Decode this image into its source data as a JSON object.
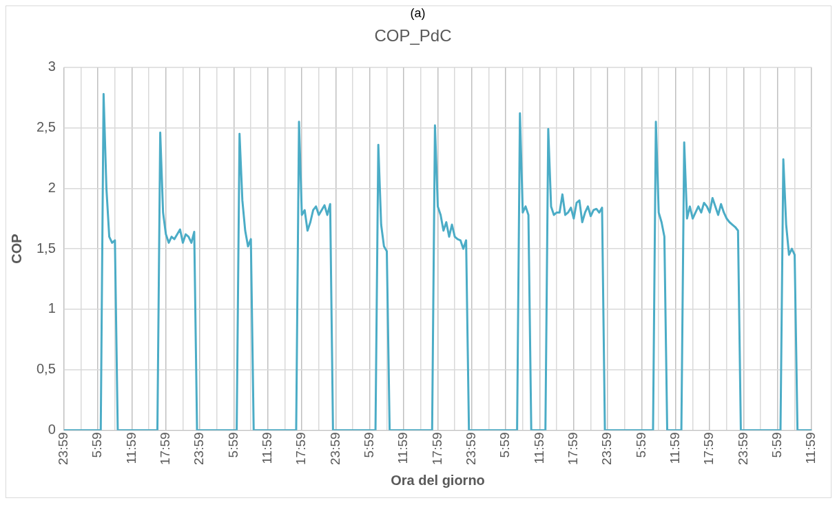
{
  "chart_data": {
    "type": "line",
    "title": "COP_PdC",
    "xlabel": "Ora del giorno",
    "ylabel": "COP",
    "annotations": [
      "(a)"
    ],
    "categories": [
      "23:59",
      null,
      null,
      null,
      null,
      null,
      null,
      null,
      null,
      null,
      null,
      null,
      "5:59",
      null,
      null,
      null,
      null,
      null,
      null,
      null,
      null,
      null,
      null,
      null,
      "11:59",
      null,
      null,
      null,
      null,
      null,
      null,
      null,
      null,
      null,
      null,
      null,
      "17:59",
      null,
      null,
      null,
      null,
      null,
      null,
      null,
      null,
      null,
      null,
      null,
      "23:59",
      null,
      null,
      null,
      null,
      null,
      null,
      null,
      null,
      null,
      null,
      null,
      "5:59",
      null,
      null,
      null,
      null,
      null,
      null,
      null,
      null,
      null,
      null,
      null,
      "11:59",
      null,
      null,
      null,
      null,
      null,
      null,
      null,
      null,
      null,
      null,
      null,
      "17:59",
      null,
      null,
      null,
      null,
      null,
      null,
      null,
      null,
      null,
      null,
      null,
      "23:59",
      null,
      null,
      null,
      null,
      null,
      null,
      null,
      null,
      null,
      null,
      null,
      "5:59",
      null,
      null,
      null,
      null,
      null,
      null,
      null,
      null,
      null,
      null,
      null,
      "11:59",
      null,
      null,
      null,
      null,
      null,
      null,
      null,
      null,
      null,
      null,
      null,
      "17:59",
      null,
      null,
      null,
      null,
      null,
      null,
      null,
      null,
      null,
      null,
      null,
      "23:59",
      null,
      null,
      null,
      null,
      null,
      null,
      null,
      null,
      null,
      null,
      null,
      "5:59",
      null,
      null,
      null,
      null,
      null,
      null,
      null,
      null,
      null,
      null,
      null,
      "11:59",
      null,
      null,
      null,
      null,
      null,
      null,
      null,
      null,
      null,
      null,
      null,
      "17:59",
      null,
      null,
      null,
      null,
      null,
      null,
      null,
      null,
      null,
      null,
      null,
      "23:59",
      null,
      null,
      null,
      null,
      null,
      null,
      null,
      null,
      null,
      null,
      null,
      "5:59",
      null,
      null,
      null,
      null,
      null,
      null,
      null,
      null,
      null,
      null,
      null,
      "11:59",
      null,
      null,
      null,
      null,
      null,
      null,
      null,
      null,
      null,
      null,
      null,
      "17:59",
      null,
      null,
      null,
      null,
      null,
      null,
      null,
      null,
      null,
      null,
      null,
      "23:59",
      null,
      null,
      null,
      null,
      null,
      null,
      null,
      null,
      null,
      null,
      null,
      "5:59",
      null,
      null,
      null,
      null,
      null,
      null,
      null,
      null,
      null,
      null,
      null,
      "11:59"
    ],
    "series": [
      {
        "color": "#4bacc6",
        "values": [
          0,
          0,
          0,
          0,
          0,
          0,
          0,
          0,
          0,
          0,
          0,
          0,
          0,
          0,
          2.78,
          2.0,
          1.6,
          1.55,
          1.57,
          0,
          0,
          0,
          0,
          0,
          0,
          0,
          0,
          0,
          0,
          0,
          0,
          0,
          0,
          0,
          2.46,
          1.8,
          1.62,
          1.55,
          1.6,
          1.58,
          1.62,
          1.66,
          1.55,
          1.62,
          1.6,
          1.55,
          1.64,
          0,
          0,
          0,
          0,
          0,
          0,
          0,
          0,
          0,
          0,
          0,
          0,
          0,
          0,
          0,
          2.45,
          1.9,
          1.65,
          1.52,
          1.58,
          0,
          0,
          0,
          0,
          0,
          0,
          0,
          0,
          0,
          0,
          0,
          0,
          0,
          0,
          0,
          0,
          2.55,
          1.78,
          1.82,
          1.65,
          1.72,
          1.82,
          1.85,
          1.78,
          1.82,
          1.86,
          1.78,
          1.87,
          0,
          0,
          0,
          0,
          0,
          0,
          0,
          0,
          0,
          0,
          0,
          0,
          0,
          0,
          0,
          0,
          2.36,
          1.7,
          1.52,
          1.48,
          0,
          0,
          0,
          0,
          0,
          0,
          0,
          0,
          0,
          0,
          0,
          0,
          0,
          0,
          0,
          0,
          2.52,
          1.85,
          1.78,
          1.65,
          1.72,
          1.6,
          1.7,
          1.6,
          1.58,
          1.57,
          1.5,
          1.57,
          0,
          0,
          0,
          0,
          0,
          0,
          0,
          0,
          0,
          0,
          0,
          0,
          0,
          0,
          0,
          0,
          0,
          0,
          2.62,
          1.8,
          1.85,
          1.78,
          0,
          0,
          0,
          0,
          0,
          0,
          2.49,
          1.85,
          1.78,
          1.8,
          1.8,
          1.95,
          1.78,
          1.8,
          1.84,
          1.75,
          1.88,
          1.9,
          1.72,
          1.8,
          1.85,
          1.77,
          1.82,
          1.83,
          1.8,
          1.84,
          0,
          0,
          0,
          0,
          0,
          0,
          0,
          0,
          0,
          0,
          0,
          0,
          0,
          0,
          0,
          0,
          0,
          0,
          2.55,
          1.8,
          1.72,
          1.6,
          0,
          0,
          0,
          0,
          0,
          0,
          2.38,
          1.75,
          1.85,
          1.75,
          1.8,
          1.85,
          1.8,
          1.88,
          1.85,
          1.8,
          1.92,
          1.85,
          1.78,
          1.87,
          1.8,
          1.75,
          1.72,
          1.7,
          1.68,
          1.65,
          0,
          0,
          0,
          0,
          0,
          0,
          0,
          0,
          0,
          0,
          0,
          0,
          0,
          0,
          0,
          2.24,
          1.7,
          1.45,
          1.5,
          1.45,
          0,
          0,
          0,
          0,
          0,
          0
        ]
      }
    ],
    "ylim": [
      0,
      3
    ],
    "yticks": [
      {
        "value": 0,
        "label": "0"
      },
      {
        "value": 0.5,
        "label": "0,5"
      },
      {
        "value": 1,
        "label": "1"
      },
      {
        "value": 1.5,
        "label": "1,5"
      },
      {
        "value": 2,
        "label": "2"
      },
      {
        "value": 2.5,
        "label": "2,5"
      },
      {
        "value": 3,
        "label": "3"
      }
    ],
    "grid": true,
    "marker": "none",
    "line_style": "solid"
  }
}
